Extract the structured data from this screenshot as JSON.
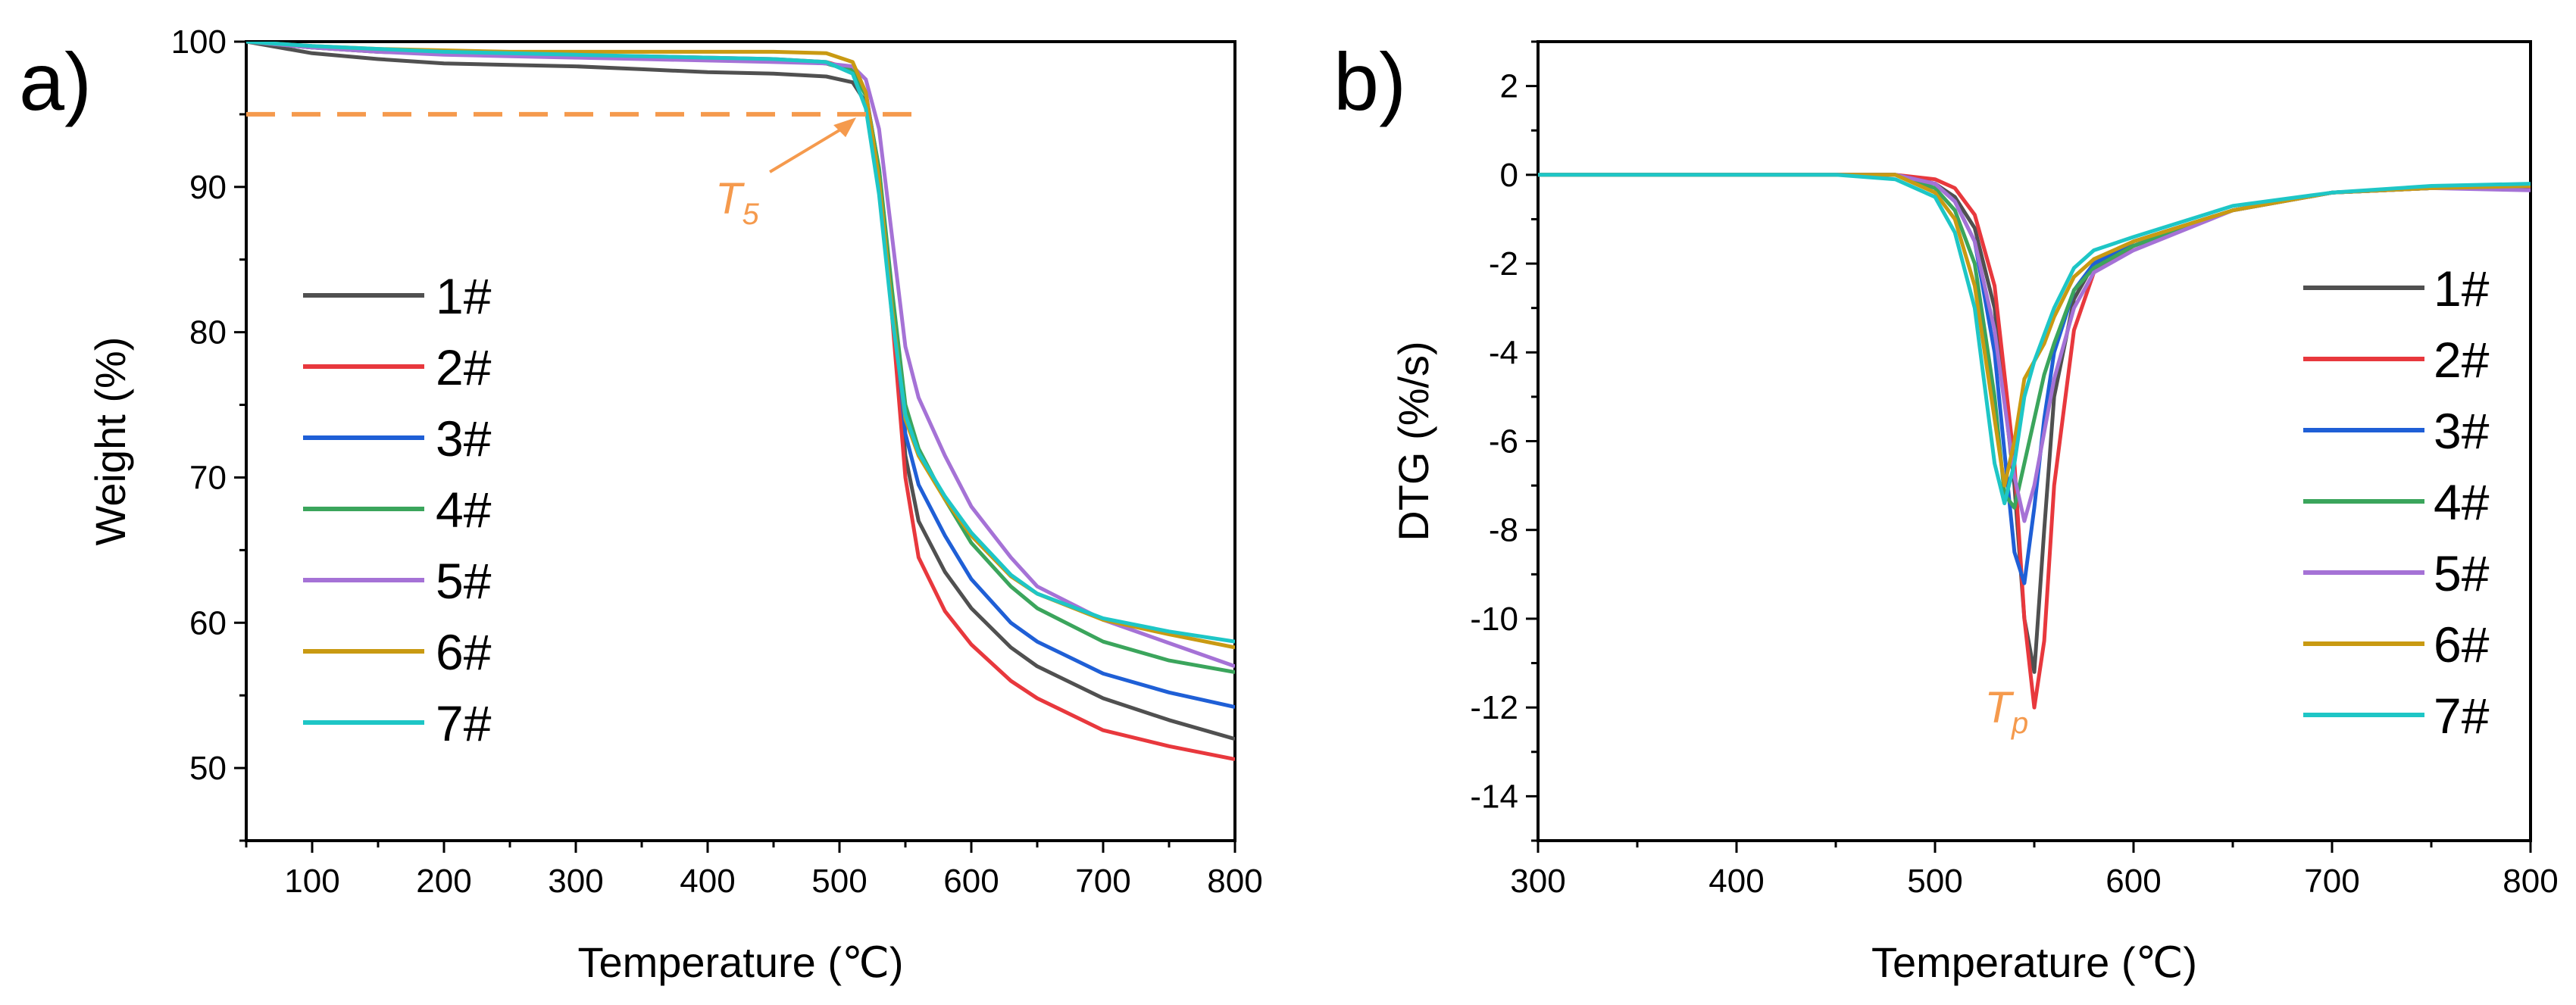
{
  "chart_data": [
    {
      "type": "line",
      "panel_label": "a)",
      "title": "",
      "xlabel": "Temperature (℃)",
      "ylabel": "Weight (%)",
      "xlim": [
        50,
        800
      ],
      "ylim": [
        45,
        100
      ],
      "x_ticks": [
        100,
        200,
        300,
        400,
        500,
        600,
        700,
        800
      ],
      "y_ticks": [
        50,
        60,
        70,
        80,
        90,
        100
      ],
      "grid": false,
      "legend_position": "left",
      "reference_line": {
        "y": 95,
        "x_range": [
          50,
          555
        ],
        "style": "dashed",
        "color": "#F59A4D"
      },
      "annotations": [
        {
          "text": "T",
          "subscript": "5",
          "x": 515,
          "y": 95.2,
          "color": "#F59A4D"
        }
      ],
      "series": [
        {
          "name": "1#",
          "color": "#505050",
          "x": [
            50,
            100,
            150,
            200,
            250,
            300,
            350,
            400,
            450,
            490,
            510,
            520,
            530,
            540,
            550,
            560,
            580,
            600,
            630,
            650,
            700,
            750,
            800
          ],
          "y": [
            100,
            99.2,
            98.8,
            98.5,
            98.4,
            98.3,
            98.1,
            97.9,
            97.8,
            97.6,
            97.2,
            95.8,
            91,
            82,
            71.5,
            67,
            63.5,
            61,
            58.3,
            57,
            54.8,
            53.3,
            52
          ]
        },
        {
          "name": "2#",
          "color": "#E8383D",
          "x": [
            50,
            100,
            150,
            200,
            250,
            300,
            350,
            400,
            450,
            490,
            510,
            520,
            530,
            540,
            550,
            560,
            580,
            600,
            630,
            650,
            700,
            750,
            800
          ],
          "y": [
            100,
            99.6,
            99.3,
            99.2,
            99.1,
            99,
            99,
            98.9,
            98.8,
            98.6,
            98.1,
            96.5,
            91,
            81,
            70,
            64.5,
            60.8,
            58.5,
            56,
            54.8,
            52.6,
            51.5,
            50.6
          ]
        },
        {
          "name": "3#",
          "color": "#1F5FD6",
          "x": [
            50,
            100,
            150,
            200,
            250,
            300,
            350,
            400,
            450,
            490,
            510,
            520,
            530,
            540,
            550,
            560,
            580,
            600,
            630,
            650,
            700,
            750,
            800
          ],
          "y": [
            100,
            99.6,
            99.4,
            99.2,
            99.1,
            99,
            98.9,
            98.8,
            98.7,
            98.5,
            98,
            96.4,
            91.2,
            82.5,
            73,
            69.5,
            66,
            63,
            60,
            58.7,
            56.5,
            55.2,
            54.2
          ]
        },
        {
          "name": "4#",
          "color": "#3BA55C",
          "x": [
            50,
            100,
            150,
            200,
            250,
            300,
            350,
            400,
            450,
            490,
            510,
            520,
            530,
            540,
            550,
            560,
            580,
            600,
            630,
            650,
            700,
            750,
            800
          ],
          "y": [
            100,
            99.6,
            99.3,
            99.2,
            99.1,
            99,
            98.9,
            98.8,
            98.7,
            98.5,
            98,
            96.3,
            91.3,
            82.8,
            75,
            72,
            68.5,
            65.5,
            62.5,
            61,
            58.7,
            57.4,
            56.6
          ]
        },
        {
          "name": "5#",
          "color": "#A572D6",
          "x": [
            50,
            100,
            150,
            200,
            250,
            300,
            350,
            400,
            450,
            490,
            510,
            520,
            530,
            540,
            550,
            560,
            580,
            600,
            630,
            650,
            700,
            750,
            800
          ],
          "y": [
            100,
            99.6,
            99.3,
            99.1,
            99,
            98.9,
            98.8,
            98.7,
            98.6,
            98.5,
            98.3,
            97.4,
            94,
            86.5,
            79,
            75.5,
            71.5,
            68,
            64.5,
            62.5,
            60.2,
            58.6,
            57
          ]
        },
        {
          "name": "6#",
          "color": "#C99A12",
          "x": [
            50,
            100,
            150,
            200,
            250,
            300,
            350,
            400,
            450,
            490,
            510,
            520,
            530,
            540,
            550,
            560,
            580,
            600,
            630,
            650,
            700,
            750,
            800
          ],
          "y": [
            100,
            99.7,
            99.5,
            99.4,
            99.3,
            99.3,
            99.3,
            99.3,
            99.3,
            99.2,
            98.6,
            96.5,
            90.5,
            81.5,
            74,
            71.5,
            68.5,
            66,
            63.2,
            62,
            60.2,
            59.2,
            58.3
          ]
        },
        {
          "name": "7#",
          "color": "#1EC6C6",
          "x": [
            50,
            100,
            150,
            200,
            250,
            300,
            350,
            400,
            450,
            490,
            510,
            520,
            530,
            540,
            550,
            560,
            580,
            600,
            630,
            650,
            700,
            750,
            800
          ],
          "y": [
            100,
            99.7,
            99.5,
            99.3,
            99.2,
            99.1,
            99,
            98.9,
            98.8,
            98.6,
            97.8,
            95.4,
            89.5,
            81,
            74.3,
            71.7,
            68.7,
            66.2,
            63.3,
            62,
            60.3,
            59.4,
            58.7
          ]
        }
      ]
    },
    {
      "type": "line",
      "panel_label": "b)",
      "title": "",
      "xlabel": "Temperature (℃)",
      "ylabel": "DTG (%/s)",
      "xlim": [
        300,
        800
      ],
      "ylim": [
        -15,
        3
      ],
      "x_ticks": [
        300,
        400,
        500,
        600,
        700,
        800
      ],
      "y_ticks": [
        -14,
        -12,
        -10,
        -8,
        -6,
        -4,
        -2,
        0,
        2
      ],
      "grid": false,
      "legend_position": "right",
      "annotations": [
        {
          "text": "T",
          "subscript": "p",
          "x": 525,
          "y": -12,
          "color": "#F59A4D"
        }
      ],
      "series": [
        {
          "name": "1#",
          "color": "#505050",
          "x": [
            300,
            350,
            400,
            450,
            480,
            500,
            510,
            520,
            530,
            540,
            545,
            550,
            555,
            560,
            570,
            580,
            600,
            650,
            700,
            750,
            800
          ],
          "y": [
            0,
            0,
            0,
            0,
            0,
            -0.2,
            -0.5,
            -1.2,
            -3,
            -7,
            -10,
            -11.2,
            -8,
            -5,
            -2.8,
            -2,
            -1.6,
            -0.8,
            -0.4,
            -0.3,
            -0.25
          ]
        },
        {
          "name": "2#",
          "color": "#E8383D",
          "x": [
            300,
            350,
            400,
            450,
            480,
            500,
            510,
            520,
            530,
            540,
            545,
            550,
            555,
            560,
            570,
            580,
            600,
            650,
            700,
            750,
            800
          ],
          "y": [
            0,
            0,
            0,
            0,
            0,
            -0.1,
            -0.3,
            -0.9,
            -2.5,
            -6.5,
            -10,
            -12,
            -10.5,
            -7,
            -3.5,
            -2.2,
            -1.6,
            -0.8,
            -0.4,
            -0.3,
            -0.3
          ]
        },
        {
          "name": "3#",
          "color": "#1F5FD6",
          "x": [
            300,
            350,
            400,
            450,
            480,
            500,
            510,
            520,
            530,
            540,
            545,
            550,
            555,
            560,
            570,
            580,
            600,
            650,
            700,
            750,
            800
          ],
          "y": [
            0,
            0,
            0,
            0,
            0,
            -0.2,
            -0.6,
            -1.5,
            -4,
            -8.5,
            -9.2,
            -7.5,
            -5.5,
            -4,
            -2.6,
            -2,
            -1.5,
            -0.8,
            -0.4,
            -0.3,
            -0.25
          ]
        },
        {
          "name": "4#",
          "color": "#3BA55C",
          "x": [
            300,
            350,
            400,
            450,
            480,
            500,
            510,
            520,
            530,
            535,
            540,
            545,
            550,
            555,
            560,
            570,
            580,
            600,
            650,
            700,
            750,
            800
          ],
          "y": [
            0,
            0,
            0,
            0,
            0,
            -0.3,
            -0.8,
            -2,
            -5,
            -7.2,
            -7.5,
            -6.5,
            -5.5,
            -4.5,
            -3.8,
            -2.6,
            -2.1,
            -1.6,
            -0.8,
            -0.4,
            -0.3,
            -0.25
          ]
        },
        {
          "name": "5#",
          "color": "#A572D6",
          "x": [
            300,
            350,
            400,
            450,
            480,
            500,
            510,
            520,
            530,
            540,
            545,
            550,
            555,
            560,
            570,
            580,
            600,
            650,
            700,
            750,
            800
          ],
          "y": [
            0,
            0,
            0,
            0,
            0,
            -0.2,
            -0.6,
            -1.5,
            -3.5,
            -6.8,
            -7.8,
            -7,
            -5.8,
            -4.6,
            -3,
            -2.2,
            -1.7,
            -0.8,
            -0.4,
            -0.3,
            -0.35
          ]
        },
        {
          "name": "6#",
          "color": "#C99A12",
          "x": [
            300,
            350,
            400,
            450,
            480,
            500,
            510,
            520,
            530,
            535,
            540,
            545,
            550,
            555,
            560,
            570,
            580,
            600,
            650,
            700,
            750,
            800
          ],
          "y": [
            0,
            0,
            0,
            0,
            0,
            -0.4,
            -1,
            -2.5,
            -5.5,
            -7,
            -6,
            -4.6,
            -4.2,
            -3.8,
            -3.2,
            -2.3,
            -1.9,
            -1.5,
            -0.8,
            -0.4,
            -0.3,
            -0.25
          ]
        },
        {
          "name": "7#",
          "color": "#1EC6C6",
          "x": [
            300,
            350,
            400,
            450,
            480,
            500,
            510,
            520,
            530,
            535,
            540,
            545,
            550,
            555,
            560,
            570,
            580,
            600,
            650,
            700,
            750,
            800
          ],
          "y": [
            0,
            0,
            0,
            0,
            -0.1,
            -0.5,
            -1.3,
            -3,
            -6.5,
            -7.4,
            -6.5,
            -5,
            -4.2,
            -3.6,
            -3,
            -2.1,
            -1.7,
            -1.4,
            -0.7,
            -0.4,
            -0.25,
            -0.2
          ]
        }
      ]
    }
  ]
}
